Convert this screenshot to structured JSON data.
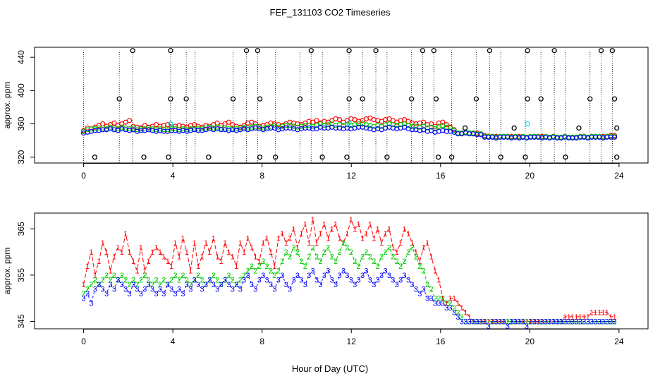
{
  "title": "FEF_131103  CO2 Timeseries",
  "xlabel": "Hour of Day (UTC)",
  "colors": {
    "series1": "#ff0000",
    "series2": "#00cc00",
    "series3": "#0000ff",
    "cyan": "#00e5e5",
    "black": "#000000"
  },
  "chart_data": [
    {
      "type": "scatter",
      "ylabel": "approx. ppm",
      "xlim": [
        -2.2,
        25.3
      ],
      "ylim": [
        313,
        452
      ],
      "xticks": [
        0,
        4,
        8,
        12,
        16,
        20,
        24
      ],
      "xtick_labels": [
        "0",
        "4",
        "8",
        "12",
        "16",
        "20",
        "24"
      ],
      "yticks": [
        320,
        360,
        400,
        440
      ],
      "ytick_labels": [
        "320",
        "360",
        "400",
        "440"
      ],
      "marker": "o",
      "red_values": [
        352,
        355,
        354,
        356,
        358,
        360,
        357,
        359,
        361,
        358,
        360,
        362,
        364,
        357,
        356,
        355,
        358,
        356,
        357,
        359,
        357,
        358,
        359,
        356,
        357,
        358,
        357,
        356,
        358,
        359,
        357,
        356,
        358,
        357,
        359,
        361,
        358,
        360,
        362,
        359,
        357,
        356,
        358,
        361,
        362,
        360,
        357,
        358,
        359,
        361,
        360,
        359,
        358,
        360,
        362,
        361,
        360,
        359,
        361,
        363,
        362,
        364,
        361,
        363,
        362,
        364,
        366,
        365,
        362,
        364,
        366,
        365,
        363,
        364,
        366,
        367,
        365,
        364,
        363,
        365,
        366,
        364,
        362,
        364,
        365,
        363,
        361,
        360,
        361,
        362,
        359,
        360,
        357,
        361,
        362,
        359,
        356,
        353,
        349,
        349,
        350,
        349,
        348,
        349,
        348,
        346,
        345,
        345,
        345,
        344,
        345,
        345,
        345,
        344,
        345,
        344,
        344,
        344,
        345,
        345,
        345,
        344,
        344,
        345,
        344,
        344,
        345,
        344,
        344,
        344,
        344,
        345,
        344,
        345,
        345,
        344,
        345,
        345,
        346,
        346
      ],
      "green_values": [
        351,
        353,
        354,
        354,
        355,
        355,
        354,
        356,
        355,
        354,
        356,
        355,
        354,
        355,
        353,
        354,
        354,
        355,
        354,
        353,
        354,
        353,
        353,
        354,
        354,
        353,
        354,
        353,
        354,
        355,
        354,
        354,
        355,
        356,
        355,
        356,
        355,
        355,
        354,
        355,
        354,
        355,
        356,
        355,
        356,
        357,
        356,
        355,
        356,
        357,
        358,
        356,
        357,
        358,
        358,
        357,
        356,
        357,
        358,
        358,
        357,
        358,
        360,
        358,
        359,
        360,
        358,
        359,
        358,
        359,
        358,
        359,
        360,
        360,
        359,
        358,
        357,
        358,
        357,
        359,
        360,
        359,
        358,
        359,
        360,
        358,
        357,
        357,
        356,
        357,
        355,
        356,
        354,
        357,
        358,
        356,
        355,
        352,
        349,
        349,
        350,
        349,
        349,
        348,
        348,
        345,
        345,
        345,
        344,
        345,
        345,
        345,
        344,
        345,
        344,
        345,
        344,
        345,
        345,
        345,
        344,
        345,
        344,
        345,
        344,
        344,
        345,
        344,
        344,
        344,
        345,
        345,
        344,
        345,
        345,
        345,
        344,
        345,
        345,
        345
      ],
      "blue_values": [
        349,
        350,
        351,
        352,
        352,
        353,
        353,
        354,
        353,
        352,
        354,
        353,
        352,
        353,
        351,
        352,
        352,
        353,
        352,
        351,
        352,
        351,
        351,
        352,
        352,
        351,
        352,
        351,
        352,
        353,
        352,
        352,
        353,
        354,
        353,
        354,
        353,
        353,
        352,
        353,
        352,
        353,
        354,
        353,
        354,
        355,
        354,
        353,
        354,
        355,
        355,
        353,
        354,
        355,
        355,
        354,
        353,
        354,
        355,
        355,
        354,
        354,
        356,
        355,
        355,
        356,
        355,
        355,
        354,
        355,
        354,
        355,
        356,
        356,
        355,
        354,
        353,
        354,
        353,
        355,
        356,
        355,
        354,
        355,
        356,
        354,
        353,
        353,
        352,
        353,
        351,
        352,
        350,
        351,
        352,
        351,
        351,
        350,
        348,
        348,
        349,
        348,
        348,
        347,
        347,
        344,
        344,
        344,
        343,
        344,
        344,
        344,
        343,
        344,
        343,
        344,
        343,
        344,
        344,
        344,
        343,
        344,
        343,
        344,
        343,
        343,
        344,
        343,
        343,
        343,
        344,
        344,
        343,
        344,
        344,
        344,
        343,
        344,
        344,
        344
      ],
      "cyan_points": [
        {
          "x": 3.9,
          "y": 360
        },
        {
          "x": 11.9,
          "y": 361
        },
        {
          "x": 19.9,
          "y": 360
        }
      ],
      "outlier_points": [
        {
          "x": 0.5,
          "y": 320
        },
        {
          "x": 1.6,
          "y": 390
        },
        {
          "x": 2.2,
          "y": 448
        },
        {
          "x": 2.7,
          "y": 320
        },
        {
          "x": 3.8,
          "y": 320
        },
        {
          "x": 3.9,
          "y": 390
        },
        {
          "x": 3.9,
          "y": 448
        },
        {
          "x": 4.6,
          "y": 390
        },
        {
          "x": 5.6,
          "y": 320
        },
        {
          "x": 6.7,
          "y": 390
        },
        {
          "x": 7.3,
          "y": 448
        },
        {
          "x": 7.8,
          "y": 448
        },
        {
          "x": 7.9,
          "y": 390
        },
        {
          "x": 7.9,
          "y": 320
        },
        {
          "x": 8.6,
          "y": 320
        },
        {
          "x": 9.7,
          "y": 390
        },
        {
          "x": 10.2,
          "y": 448
        },
        {
          "x": 10.7,
          "y": 320
        },
        {
          "x": 11.8,
          "y": 320
        },
        {
          "x": 11.9,
          "y": 390
        },
        {
          "x": 11.9,
          "y": 448
        },
        {
          "x": 12.5,
          "y": 390
        },
        {
          "x": 13.1,
          "y": 448
        },
        {
          "x": 13.6,
          "y": 320
        },
        {
          "x": 14.7,
          "y": 390
        },
        {
          "x": 15.2,
          "y": 448
        },
        {
          "x": 15.7,
          "y": 448
        },
        {
          "x": 15.8,
          "y": 390
        },
        {
          "x": 15.9,
          "y": 320
        },
        {
          "x": 16.5,
          "y": 320
        },
        {
          "x": 17.1,
          "y": 355
        },
        {
          "x": 17.6,
          "y": 390
        },
        {
          "x": 18.2,
          "y": 448
        },
        {
          "x": 18.7,
          "y": 320
        },
        {
          "x": 19.3,
          "y": 355
        },
        {
          "x": 19.8,
          "y": 320
        },
        {
          "x": 19.9,
          "y": 390
        },
        {
          "x": 19.9,
          "y": 448
        },
        {
          "x": 20.5,
          "y": 390
        },
        {
          "x": 21.1,
          "y": 448
        },
        {
          "x": 21.6,
          "y": 320
        },
        {
          "x": 22.2,
          "y": 355
        },
        {
          "x": 22.7,
          "y": 390
        },
        {
          "x": 23.2,
          "y": 448
        },
        {
          "x": 23.7,
          "y": 448
        },
        {
          "x": 23.8,
          "y": 390
        },
        {
          "x": 23.9,
          "y": 355
        },
        {
          "x": 23.9,
          "y": 320
        }
      ],
      "drop_lines": [
        0.0,
        1.6,
        2.2,
        3.9,
        4.6,
        5.0,
        6.7,
        7.3,
        7.8,
        8.6,
        9.7,
        10.2,
        10.7,
        11.9,
        12.5,
        13.1,
        13.6,
        14.7,
        15.2,
        15.7,
        16.5,
        17.6,
        18.2,
        18.7,
        19.8,
        20.5,
        21.1,
        21.6,
        22.7,
        23.2,
        23.7
      ]
    },
    {
      "type": "line",
      "ylabel": "approx. ppm",
      "xlim": [
        -2.2,
        25.3
      ],
      "ylim": [
        343.4,
        368.4
      ],
      "xticks": [
        0,
        4,
        8,
        12,
        16,
        20,
        24
      ],
      "xtick_labels": [
        "0",
        "4",
        "8",
        "12",
        "16",
        "20",
        "24"
      ],
      "yticks": [
        345,
        355,
        365
      ],
      "ytick_labels": [
        "345",
        "355",
        "365"
      ],
      "series": [
        {
          "label": "1",
          "values": [
            353,
            357,
            360,
            355,
            358,
            362,
            360,
            356,
            359,
            361,
            360,
            364,
            360,
            358,
            356,
            361,
            356,
            358,
            360,
            361,
            360,
            359,
            358,
            357,
            362,
            359,
            363,
            360,
            356,
            362,
            357,
            359,
            362,
            360,
            363,
            359,
            358,
            362,
            360,
            359,
            357,
            362,
            360,
            363,
            361,
            359,
            358,
            362,
            363,
            360,
            357,
            363,
            364,
            362,
            363,
            365,
            361,
            364,
            366,
            362,
            367,
            362,
            364,
            366,
            363,
            365,
            366,
            363,
            362,
            364,
            367,
            365,
            366,
            363,
            364,
            366,
            363,
            365,
            362,
            364,
            365,
            361,
            360,
            362,
            365,
            364,
            362,
            360,
            358,
            361,
            362,
            359,
            356,
            354,
            350,
            349,
            350,
            350,
            349,
            348,
            347,
            346,
            345,
            345,
            345,
            345,
            345,
            345,
            345,
            345,
            345,
            345,
            345,
            345,
            345,
            345,
            345,
            345,
            345,
            345,
            345,
            345,
            345,
            345,
            345,
            345,
            346,
            346,
            346,
            346,
            346,
            346,
            346,
            347,
            347,
            347,
            347,
            347,
            346,
            346
          ]
        },
        {
          "label": "2",
          "values": [
            351,
            352,
            353,
            354,
            353,
            354,
            355,
            354,
            355,
            354,
            355,
            354,
            353,
            354,
            353,
            354,
            355,
            354,
            353,
            354,
            353,
            354,
            353,
            354,
            355,
            354,
            355,
            354,
            353,
            354,
            355,
            354,
            353,
            354,
            355,
            354,
            353,
            354,
            355,
            354,
            353,
            354,
            355,
            356,
            357,
            356,
            357,
            358,
            357,
            356,
            355,
            356,
            358,
            360,
            359,
            361,
            360,
            358,
            357,
            359,
            361,
            359,
            358,
            360,
            361,
            359,
            358,
            360,
            362,
            361,
            360,
            358,
            357,
            359,
            360,
            359,
            358,
            357,
            359,
            360,
            361,
            359,
            358,
            357,
            358,
            360,
            361,
            359,
            357,
            356,
            353,
            352,
            350,
            350,
            350,
            349,
            349,
            348,
            347,
            346,
            345,
            345,
            345,
            345,
            345,
            345,
            345,
            345,
            345,
            345,
            345,
            345,
            345,
            345,
            345,
            345,
            345,
            345,
            345,
            345,
            345,
            345,
            345,
            345,
            345,
            345,
            345,
            345,
            345,
            345,
            345,
            345,
            345,
            345,
            345,
            345,
            345,
            345,
            345,
            345
          ]
        },
        {
          "label": "3",
          "values": [
            350,
            351,
            349,
            352,
            353,
            352,
            351,
            353,
            352,
            354,
            353,
            352,
            351,
            353,
            352,
            351,
            352,
            353,
            352,
            351,
            352,
            351,
            353,
            352,
            351,
            352,
            351,
            353,
            352,
            354,
            353,
            352,
            353,
            354,
            353,
            352,
            353,
            354,
            353,
            352,
            353,
            352,
            354,
            355,
            353,
            352,
            354,
            355,
            354,
            353,
            352,
            354,
            355,
            353,
            352,
            354,
            355,
            354,
            353,
            355,
            356,
            354,
            353,
            355,
            356,
            354,
            353,
            355,
            356,
            355,
            354,
            353,
            354,
            355,
            356,
            354,
            353,
            354,
            355,
            356,
            355,
            354,
            353,
            354,
            355,
            354,
            353,
            352,
            351,
            352,
            350,
            350,
            349,
            349,
            349,
            348,
            348,
            347,
            346,
            345,
            345,
            345,
            345,
            345,
            345,
            345,
            344,
            345,
            345,
            345,
            345,
            344,
            345,
            345,
            345,
            345,
            344,
            345,
            345,
            345,
            345,
            345,
            345,
            345,
            345,
            345,
            345,
            345,
            345,
            345,
            345,
            345,
            345,
            345,
            345,
            345,
            345,
            345,
            345,
            345
          ]
        }
      ]
    }
  ]
}
